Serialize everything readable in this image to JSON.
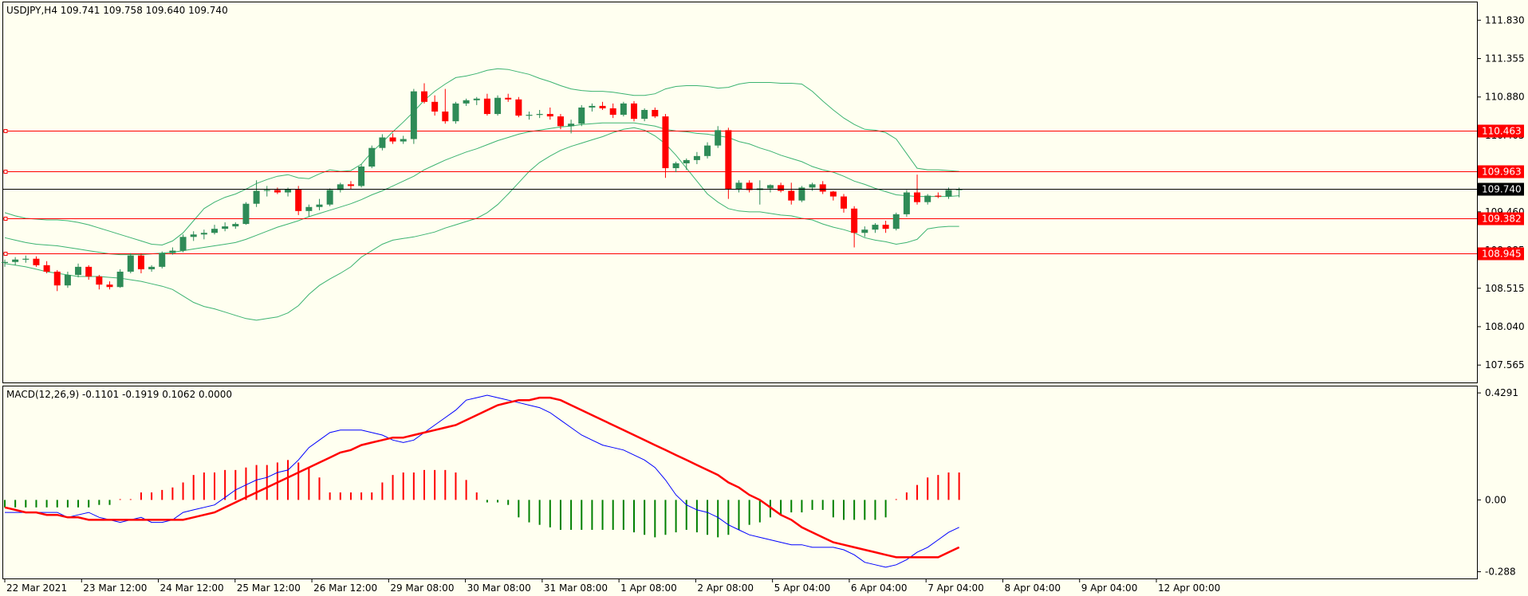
{
  "chart_data": [
    {
      "type": "candlestick",
      "header": "USDJPY,H4  109.741 109.758 109.640 109.740",
      "price_ticks": [
        "111.830",
        "111.355",
        "110.880",
        "110.405",
        "109.930",
        "109.460",
        "108.985",
        "108.515",
        "108.040",
        "107.565"
      ],
      "price_tick_values": [
        111.83,
        111.355,
        110.88,
        110.405,
        109.93,
        109.46,
        108.985,
        108.515,
        108.04,
        107.565
      ],
      "ylim": [
        107.35,
        112.05
      ],
      "current_price": 109.74,
      "current_label": "109.740",
      "levels": [
        {
          "value": 110.463,
          "label": "110.463"
        },
        {
          "value": 109.963,
          "label": "109.963"
        },
        {
          "value": 109.382,
          "label": "109.382"
        },
        {
          "value": 108.945,
          "label": "108.945"
        }
      ],
      "colors": {
        "up": "#2e8b57",
        "down": "#ff0000",
        "bands": "#3cb371",
        "level": "#ff0000",
        "current": "#000000"
      },
      "x_labels": [
        "22 Mar 2021",
        "23 Mar 12:00",
        "24 Mar 12:00",
        "25 Mar 12:00",
        "26 Mar 12:00",
        "29 Mar 08:00",
        "30 Mar 08:00",
        "31 Mar 08:00",
        "1 Apr 08:00",
        "2 Apr 08:00",
        "5 Apr 04:00",
        "6 Apr 04:00",
        "7 Apr 04:00",
        "8 Apr 04:00",
        "9 Apr 04:00",
        "12 Apr 00:00"
      ],
      "candles": [
        [
          108.83,
          108.87,
          108.78,
          108.84
        ],
        [
          108.84,
          108.9,
          108.8,
          108.87
        ],
        [
          108.87,
          108.92,
          108.83,
          108.88
        ],
        [
          108.88,
          108.91,
          108.78,
          108.8
        ],
        [
          108.8,
          108.85,
          108.7,
          108.72
        ],
        [
          108.72,
          108.74,
          108.48,
          108.55
        ],
        [
          108.55,
          108.72,
          108.52,
          108.68
        ],
        [
          108.68,
          108.82,
          108.65,
          108.78
        ],
        [
          108.78,
          108.8,
          108.62,
          108.66
        ],
        [
          108.66,
          108.68,
          108.5,
          108.56
        ],
        [
          108.56,
          108.6,
          108.5,
          108.53
        ],
        [
          108.53,
          108.75,
          108.52,
          108.72
        ],
        [
          108.72,
          108.95,
          108.7,
          108.92
        ],
        [
          108.92,
          108.95,
          108.7,
          108.75
        ],
        [
          108.75,
          108.8,
          108.72,
          108.78
        ],
        [
          108.78,
          108.97,
          108.76,
          108.95
        ],
        [
          108.95,
          109.02,
          108.93,
          108.98
        ],
        [
          108.98,
          109.18,
          108.96,
          109.15
        ],
        [
          109.15,
          109.22,
          109.1,
          109.18
        ],
        [
          109.18,
          109.24,
          109.12,
          109.2
        ],
        [
          109.2,
          109.3,
          109.18,
          109.25
        ],
        [
          109.25,
          109.33,
          109.22,
          109.28
        ],
        [
          109.28,
          109.33,
          109.25,
          109.31
        ],
        [
          109.31,
          109.58,
          109.3,
          109.56
        ],
        [
          109.56,
          109.85,
          109.52,
          109.72
        ],
        [
          109.72,
          109.78,
          109.65,
          109.73
        ],
        [
          109.73,
          109.76,
          109.68,
          109.7
        ],
        [
          109.7,
          109.76,
          109.65,
          109.74
        ],
        [
          109.74,
          109.78,
          109.42,
          109.47
        ],
        [
          109.47,
          109.55,
          109.4,
          109.52
        ],
        [
          109.52,
          109.62,
          109.48,
          109.55
        ],
        [
          109.55,
          109.75,
          109.53,
          109.73
        ],
        [
          109.73,
          109.82,
          109.7,
          109.8
        ],
        [
          109.8,
          109.84,
          109.74,
          109.78
        ],
        [
          109.78,
          110.05,
          109.76,
          110.02
        ],
        [
          110.02,
          110.28,
          110.0,
          110.25
        ],
        [
          110.25,
          110.42,
          110.22,
          110.38
        ],
        [
          110.38,
          110.43,
          110.3,
          110.33
        ],
        [
          110.33,
          110.4,
          110.3,
          110.36
        ],
        [
          110.36,
          110.98,
          110.3,
          110.95
        ],
        [
          110.95,
          111.05,
          110.8,
          110.82
        ],
        [
          110.82,
          110.9,
          110.65,
          110.7
        ],
        [
          110.7,
          110.98,
          110.55,
          110.58
        ],
        [
          110.58,
          110.82,
          110.55,
          110.8
        ],
        [
          110.8,
          110.86,
          110.77,
          110.84
        ],
        [
          110.84,
          110.88,
          110.78,
          110.86
        ],
        [
          110.86,
          110.92,
          110.65,
          110.67
        ],
        [
          110.67,
          110.9,
          110.65,
          110.87
        ],
        [
          110.87,
          110.92,
          110.82,
          110.85
        ],
        [
          110.85,
          110.88,
          110.63,
          110.65
        ],
        [
          110.65,
          110.7,
          110.6,
          110.66
        ],
        [
          110.66,
          110.72,
          110.62,
          110.67
        ],
        [
          110.67,
          110.75,
          110.6,
          110.64
        ],
        [
          110.64,
          110.67,
          110.48,
          110.52
        ],
        [
          110.52,
          110.6,
          110.43,
          110.55
        ],
        [
          110.55,
          110.78,
          110.52,
          110.75
        ],
        [
          110.75,
          110.8,
          110.7,
          110.77
        ],
        [
          110.77,
          110.82,
          110.72,
          110.74
        ],
        [
          110.74,
          110.8,
          110.62,
          110.66
        ],
        [
          110.66,
          110.82,
          110.64,
          110.8
        ],
        [
          110.8,
          110.83,
          110.58,
          110.61
        ],
        [
          110.61,
          110.74,
          110.58,
          110.72
        ],
        [
          110.72,
          110.75,
          110.62,
          110.64
        ],
        [
          110.64,
          110.67,
          109.88,
          110.0
        ],
        [
          110.0,
          110.08,
          109.95,
          110.06
        ],
        [
          110.06,
          110.12,
          109.98,
          110.1
        ],
        [
          110.1,
          110.2,
          110.05,
          110.15
        ],
        [
          110.15,
          110.32,
          110.12,
          110.28
        ],
        [
          110.28,
          110.52,
          110.25,
          110.47
        ],
        [
          110.47,
          110.5,
          109.62,
          109.74
        ],
        [
          109.74,
          109.85,
          109.7,
          109.82
        ],
        [
          109.82,
          109.85,
          109.7,
          109.73
        ],
        [
          109.73,
          109.85,
          109.55,
          109.75
        ],
        [
          109.75,
          109.8,
          109.7,
          109.79
        ],
        [
          109.79,
          109.82,
          109.7,
          109.72
        ],
        [
          109.72,
          109.82,
          109.55,
          109.6
        ],
        [
          109.6,
          109.78,
          109.58,
          109.76
        ],
        [
          109.76,
          109.82,
          109.72,
          109.8
        ],
        [
          109.8,
          109.84,
          109.68,
          109.71
        ],
        [
          109.71,
          109.72,
          109.6,
          109.65
        ],
        [
          109.65,
          109.68,
          109.45,
          109.5
        ],
        [
          109.5,
          109.53,
          109.02,
          109.2
        ],
        [
          109.2,
          109.28,
          109.15,
          109.24
        ],
        [
          109.24,
          109.32,
          109.2,
          109.3
        ],
        [
          109.3,
          109.35,
          109.2,
          109.25
        ],
        [
          109.25,
          109.45,
          109.23,
          109.43
        ],
        [
          109.43,
          109.73,
          109.4,
          109.7
        ],
        [
          109.7,
          109.92,
          109.55,
          109.58
        ],
        [
          109.58,
          109.68,
          109.55,
          109.66
        ],
        [
          109.66,
          109.7,
          109.63,
          109.65
        ],
        [
          109.65,
          109.76,
          109.62,
          109.73
        ],
        [
          109.73,
          109.76,
          109.64,
          109.74
        ]
      ],
      "upper_band": [
        109.45,
        109.41,
        109.38,
        109.37,
        109.36,
        109.36,
        109.35,
        109.33,
        109.3,
        109.26,
        109.22,
        109.18,
        109.14,
        109.1,
        109.06,
        109.05,
        109.1,
        109.2,
        109.35,
        109.5,
        109.58,
        109.64,
        109.68,
        109.74,
        109.81,
        109.86,
        109.9,
        109.92,
        109.88,
        109.87,
        109.93,
        109.98,
        109.96,
        109.97,
        110.05,
        110.2,
        110.32,
        110.45,
        110.57,
        110.7,
        110.84,
        110.95,
        111.04,
        111.12,
        111.14,
        111.17,
        111.21,
        111.23,
        111.22,
        111.19,
        111.16,
        111.11,
        111.07,
        111.02,
        110.98,
        110.96,
        110.95,
        110.95,
        110.94,
        110.92,
        110.9,
        110.9,
        110.92,
        110.98,
        111.01,
        111.02,
        111.02,
        111.01,
        110.99,
        111.0,
        111.04,
        111.06,
        111.06,
        111.06,
        111.05,
        111.05,
        111.04,
        110.95,
        110.83,
        110.72,
        110.62,
        110.54,
        110.48,
        110.47,
        110.44,
        110.36,
        110.18,
        110.0,
        109.98,
        109.98,
        109.97,
        109.96
      ],
      "middle_band": [
        109.14,
        109.11,
        109.08,
        109.06,
        109.05,
        109.04,
        109.02,
        109.0,
        108.98,
        108.96,
        108.94,
        108.93,
        108.93,
        108.93,
        108.94,
        108.95,
        108.96,
        108.98,
        109.0,
        109.02,
        109.04,
        109.06,
        109.08,
        109.12,
        109.17,
        109.22,
        109.27,
        109.31,
        109.35,
        109.4,
        109.44,
        109.48,
        109.52,
        109.56,
        109.61,
        109.67,
        109.72,
        109.78,
        109.84,
        109.9,
        109.98,
        110.04,
        110.1,
        110.15,
        110.2,
        110.24,
        110.29,
        110.34,
        110.38,
        110.42,
        110.45,
        110.47,
        110.49,
        110.51,
        110.52,
        110.54,
        110.55,
        110.56,
        110.56,
        110.56,
        110.56,
        110.54,
        110.52,
        110.48,
        110.46,
        110.45,
        110.43,
        110.42,
        110.4,
        110.38,
        110.33,
        110.3,
        110.25,
        110.21,
        110.16,
        110.12,
        110.08,
        110.02,
        109.98,
        109.95,
        109.9,
        109.84,
        109.8,
        109.75,
        109.71,
        109.67,
        109.66,
        109.65,
        109.65,
        109.65,
        109.65,
        109.66
      ],
      "lower_band": [
        108.82,
        108.8,
        108.78,
        108.75,
        108.72,
        108.7,
        108.68,
        108.66,
        108.66,
        108.66,
        108.65,
        108.64,
        108.62,
        108.6,
        108.57,
        108.54,
        108.5,
        108.42,
        108.34,
        108.29,
        108.26,
        108.22,
        108.18,
        108.14,
        108.12,
        108.14,
        108.16,
        108.21,
        108.3,
        108.44,
        108.55,
        108.63,
        108.7,
        108.78,
        108.9,
        108.98,
        109.06,
        109.11,
        109.13,
        109.15,
        109.18,
        109.21,
        109.26,
        109.3,
        109.34,
        109.38,
        109.45,
        109.55,
        109.68,
        109.82,
        109.96,
        110.07,
        110.15,
        110.22,
        110.27,
        110.31,
        110.35,
        110.39,
        110.44,
        110.48,
        110.5,
        110.47,
        110.4,
        110.3,
        110.16,
        110.0,
        109.84,
        109.68,
        109.58,
        109.5,
        109.47,
        109.46,
        109.46,
        109.44,
        109.42,
        109.41,
        109.38,
        109.36,
        109.31,
        109.27,
        109.24,
        109.2,
        109.14,
        109.11,
        109.09,
        109.06,
        109.08,
        109.12,
        109.25,
        109.27,
        109.28,
        109.28
      ]
    },
    {
      "type": "line",
      "header": "MACD(12,26,9) -0.1101 -0.1919 0.1062 0.0000",
      "ticks": [
        "0.4291",
        "0.00",
        "-0.288"
      ],
      "tick_values": [
        0.4291,
        0.0,
        -0.288
      ],
      "ylim": [
        -0.315,
        0.455
      ],
      "colors": {
        "macd": "#0000ff",
        "signal": "#ff0000",
        "hist_pos": "#ff0000",
        "hist_neg": "#008000"
      },
      "macd_line": [
        -0.05,
        -0.05,
        -0.05,
        -0.05,
        -0.05,
        -0.05,
        -0.07,
        -0.06,
        -0.05,
        -0.07,
        -0.08,
        -0.09,
        -0.08,
        -0.07,
        -0.09,
        -0.09,
        -0.08,
        -0.05,
        -0.04,
        -0.03,
        -0.02,
        0.01,
        0.04,
        0.06,
        0.08,
        0.09,
        0.11,
        0.12,
        0.16,
        0.21,
        0.24,
        0.27,
        0.28,
        0.28,
        0.28,
        0.27,
        0.26,
        0.24,
        0.23,
        0.24,
        0.27,
        0.3,
        0.33,
        0.36,
        0.4,
        0.41,
        0.42,
        0.41,
        0.4,
        0.39,
        0.38,
        0.37,
        0.35,
        0.32,
        0.29,
        0.26,
        0.24,
        0.22,
        0.21,
        0.2,
        0.18,
        0.16,
        0.13,
        0.08,
        0.02,
        -0.02,
        -0.04,
        -0.05,
        -0.07,
        -0.1,
        -0.12,
        -0.14,
        -0.15,
        -0.16,
        -0.17,
        -0.18,
        -0.18,
        -0.19,
        -0.19,
        -0.19,
        -0.2,
        -0.22,
        -0.25,
        -0.26,
        -0.27,
        -0.26,
        -0.24,
        -0.21,
        -0.19,
        -0.16,
        -0.13,
        -0.11
      ],
      "signal_line": [
        -0.03,
        -0.04,
        -0.05,
        -0.05,
        -0.06,
        -0.06,
        -0.07,
        -0.07,
        -0.08,
        -0.08,
        -0.08,
        -0.08,
        -0.08,
        -0.08,
        -0.08,
        -0.08,
        -0.08,
        -0.08,
        -0.07,
        -0.06,
        -0.05,
        -0.03,
        -0.01,
        0.01,
        0.03,
        0.05,
        0.07,
        0.09,
        0.11,
        0.13,
        0.15,
        0.17,
        0.19,
        0.2,
        0.22,
        0.23,
        0.24,
        0.25,
        0.25,
        0.26,
        0.27,
        0.28,
        0.29,
        0.3,
        0.32,
        0.34,
        0.36,
        0.38,
        0.39,
        0.4,
        0.4,
        0.41,
        0.41,
        0.4,
        0.38,
        0.36,
        0.34,
        0.32,
        0.3,
        0.28,
        0.26,
        0.24,
        0.22,
        0.2,
        0.18,
        0.16,
        0.14,
        0.12,
        0.1,
        0.07,
        0.05,
        0.02,
        0.0,
        -0.03,
        -0.06,
        -0.08,
        -0.11,
        -0.13,
        -0.15,
        -0.17,
        -0.18,
        -0.19,
        -0.2,
        -0.21,
        -0.22,
        -0.23,
        -0.23,
        -0.23,
        -0.23,
        -0.23,
        -0.21,
        -0.19
      ],
      "histogram": [
        -0.03,
        -0.03,
        -0.03,
        -0.03,
        -0.03,
        -0.03,
        -0.03,
        -0.03,
        -0.03,
        -0.02,
        -0.02,
        0.0,
        0.0,
        0.03,
        0.03,
        0.04,
        0.05,
        0.07,
        0.1,
        0.11,
        0.11,
        0.12,
        0.12,
        0.13,
        0.14,
        0.14,
        0.15,
        0.16,
        0.15,
        0.13,
        0.09,
        0.03,
        0.03,
        0.03,
        0.03,
        0.03,
        0.07,
        0.1,
        0.11,
        0.11,
        0.12,
        0.12,
        0.12,
        0.11,
        0.08,
        0.03,
        -0.01,
        -0.01,
        -0.02,
        -0.07,
        -0.09,
        -0.1,
        -0.11,
        -0.12,
        -0.12,
        -0.12,
        -0.12,
        -0.12,
        -0.12,
        -0.12,
        -0.13,
        -0.14,
        -0.15,
        -0.14,
        -0.13,
        -0.12,
        -0.13,
        -0.14,
        -0.15,
        -0.14,
        -0.12,
        -0.1,
        -0.09,
        -0.07,
        -0.06,
        -0.05,
        -0.05,
        -0.04,
        -0.04,
        -0.07,
        -0.08,
        -0.08,
        -0.08,
        -0.08,
        -0.07,
        0.0,
        0.03,
        0.06,
        0.09,
        0.1,
        0.11,
        0.11
      ]
    }
  ]
}
